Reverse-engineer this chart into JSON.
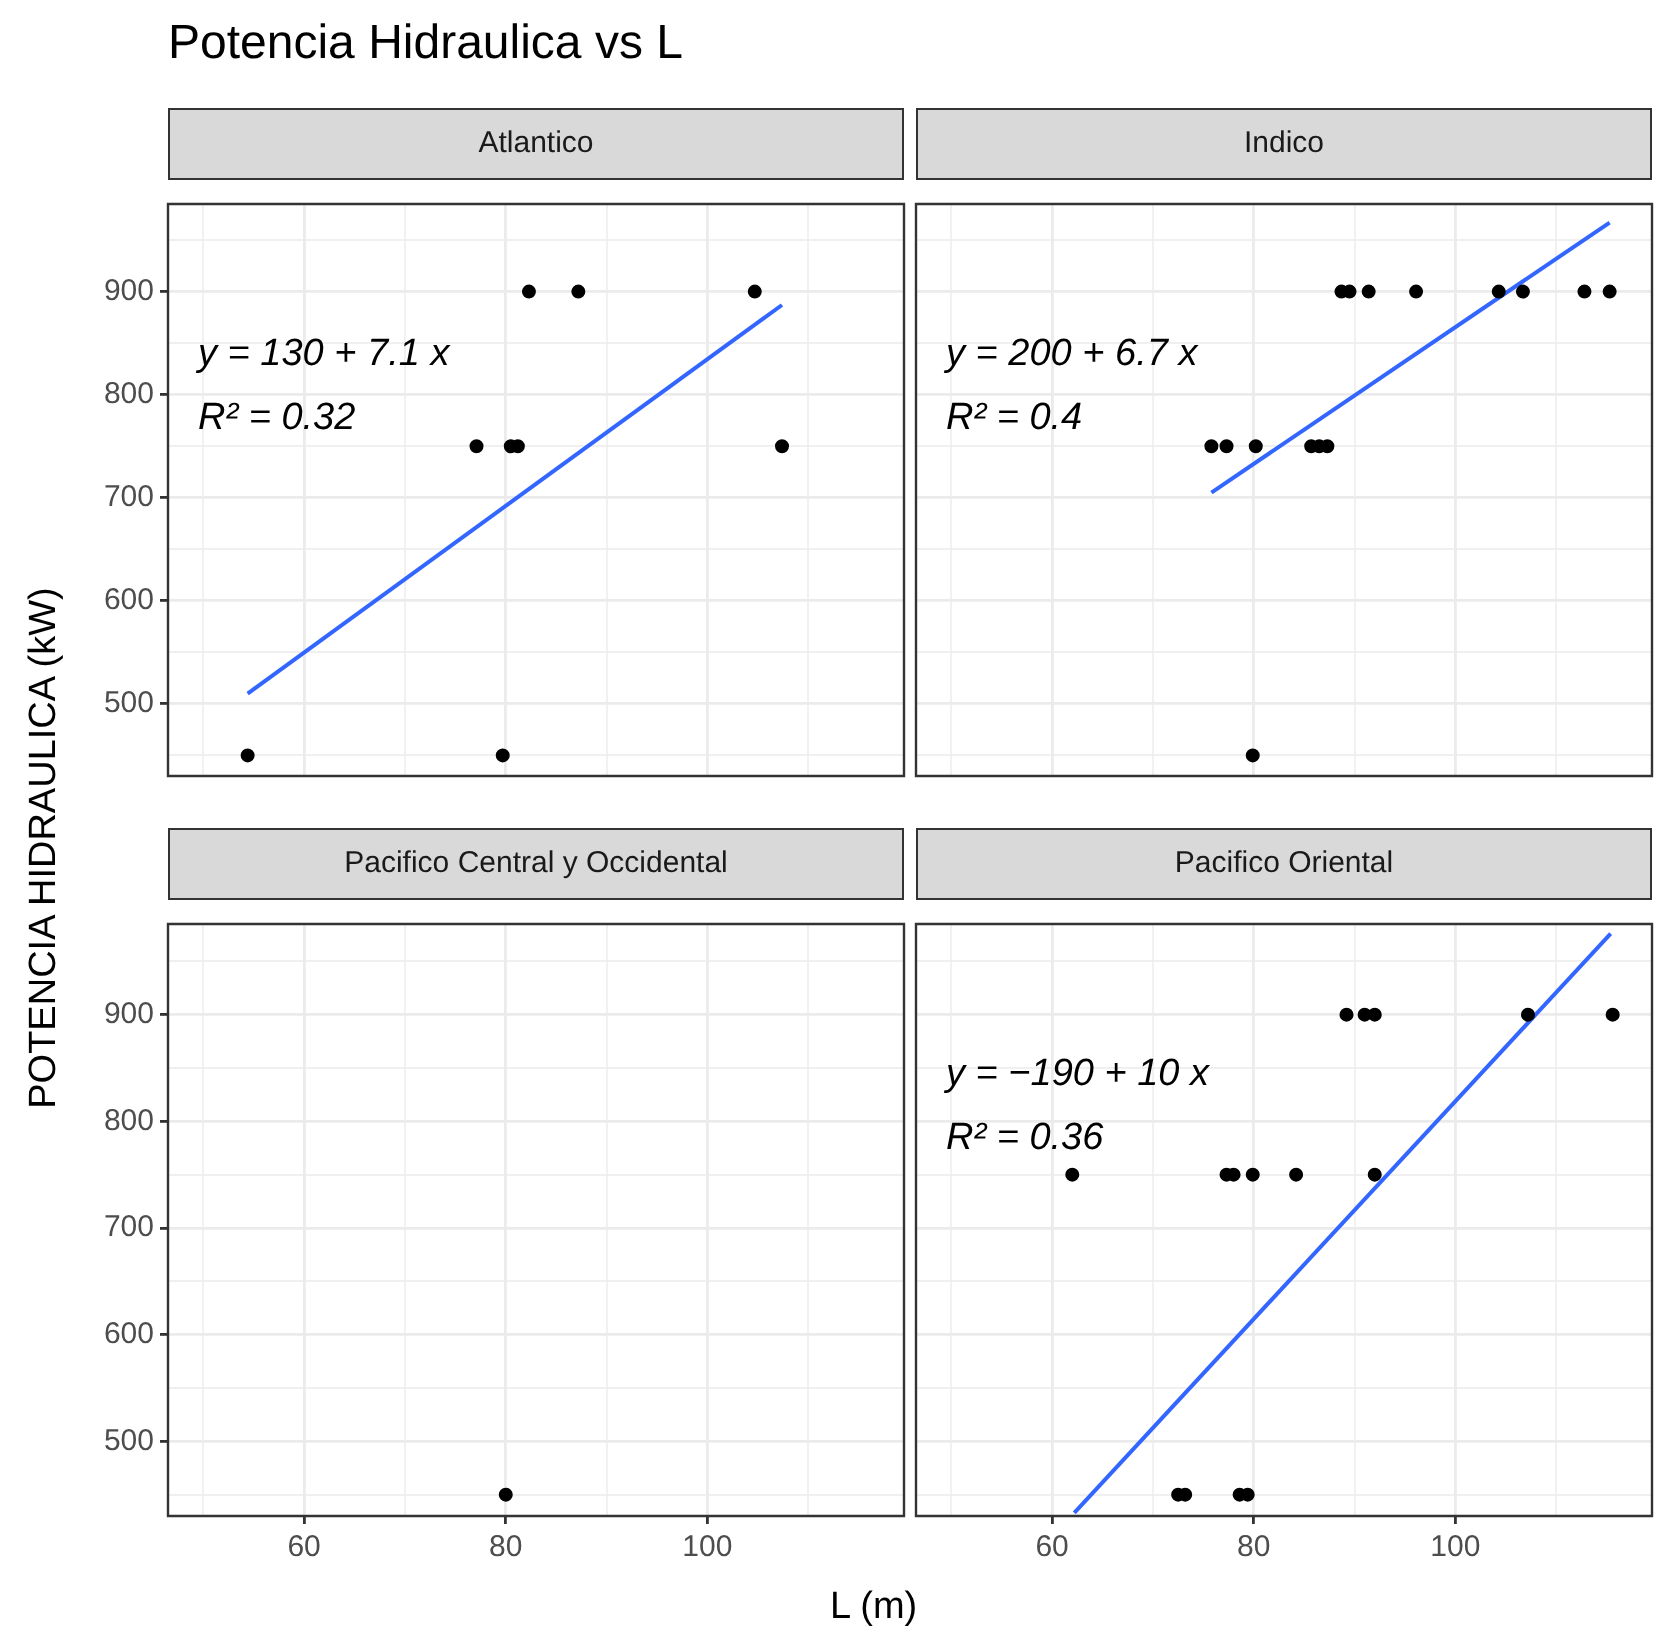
{
  "chart_data": [
    {
      "type": "scatter",
      "title": "Potencia Hidraulica vs L",
      "subtitle": "Atlantico",
      "ylabel": "POTENCIA HIDRAULICA (kW)",
      "xlim": [
        46.5,
        119.5
      ],
      "ylim": [
        430,
        985
      ],
      "xticks": [
        {
          "value": 50,
          "label": null
        },
        60,
        {
          "value": 70,
          "label": null
        },
        80,
        {
          "value": 90,
          "label": null
        },
        100,
        {
          "value": 110,
          "label": null
        }
      ],
      "yticks": [
        {
          "value": 450,
          "label": null
        },
        500,
        {
          "value": 550,
          "label": null
        },
        600,
        {
          "value": 650,
          "label": null
        },
        700,
        {
          "value": 750,
          "label": null
        },
        800,
        {
          "value": 850,
          "label": null
        },
        900,
        {
          "value": 950,
          "label": null
        }
      ],
      "grid": true,
      "tick_labels": "y",
      "annotations": [
        "y = 130 + 7.1 x",
        "R² = 0.32"
      ],
      "series": [
        {
          "marker": "circle",
          "color": "#000000",
          "x": [
            54.4,
            79.7,
            82.3,
            87.2,
            104.7,
            77.1,
            80.5,
            81.2,
            107.4
          ],
          "values": [
            450,
            450,
            900,
            900,
            900,
            750,
            750,
            750,
            750
          ]
        },
        {
          "type": "line",
          "marker": "none",
          "color": "#3366ff",
          "x": [
            54.4,
            107.4
          ],
          "values": [
            510,
            887
          ]
        }
      ]
    },
    {
      "type": "scatter",
      "subtitle": "Indico",
      "xlim": [
        46.5,
        119.5
      ],
      "ylim": [
        430,
        985
      ],
      "xticks": [
        {
          "value": 50,
          "label": null
        },
        60,
        {
          "value": 70,
          "label": null
        },
        80,
        {
          "value": 90,
          "label": null
        },
        100,
        {
          "value": 110,
          "label": null
        }
      ],
      "yticks": [
        {
          "value": 450,
          "label": null
        },
        500,
        {
          "value": 550,
          "label": null
        },
        600,
        {
          "value": 650,
          "label": null
        },
        700,
        {
          "value": 750,
          "label": null
        },
        800,
        {
          "value": 850,
          "label": null
        },
        900,
        {
          "value": 950,
          "label": null
        }
      ],
      "grid": true,
      "tick_labels": false,
      "annotations": [
        "y = 200 + 6.7 x",
        "R² = 0.4"
      ],
      "series": [
        {
          "marker": "circle",
          "color": "#000000",
          "x": [
            79.9,
            75.8,
            77.3,
            80.2,
            85.7,
            86.5,
            87.3,
            88.7,
            89.5,
            91.4,
            96.1,
            104.3,
            106.7,
            112.8,
            115.3
          ],
          "values": [
            450,
            750,
            750,
            750,
            750,
            750,
            750,
            900,
            900,
            900,
            900,
            900,
            900,
            900,
            900
          ]
        },
        {
          "type": "line",
          "marker": "none",
          "color": "#3366ff",
          "x": [
            75.8,
            115.3
          ],
          "values": [
            705,
            967
          ]
        }
      ]
    },
    {
      "type": "scatter",
      "subtitle": "Pacifico Central y Occidental",
      "xlabel": "L (m)",
      "xlim": [
        46.5,
        119.5
      ],
      "ylim": [
        430,
        985
      ],
      "xticks": [
        {
          "value": 50,
          "label": null
        },
        60,
        {
          "value": 70,
          "label": null
        },
        80,
        {
          "value": 90,
          "label": null
        },
        100,
        {
          "value": 110,
          "label": null
        }
      ],
      "yticks": [
        {
          "value": 450,
          "label": null
        },
        500,
        {
          "value": 550,
          "label": null
        },
        600,
        {
          "value": 650,
          "label": null
        },
        700,
        {
          "value": 750,
          "label": null
        },
        800,
        {
          "value": 850,
          "label": null
        },
        900,
        {
          "value": 950,
          "label": null
        }
      ],
      "grid": true,
      "series": [
        {
          "marker": "circle",
          "color": "#000000",
          "x": [
            80
          ],
          "values": [
            450
          ]
        }
      ]
    },
    {
      "type": "scatter",
      "subtitle": "Pacifico Oriental",
      "xlim": [
        46.5,
        119.5
      ],
      "ylim": [
        430,
        985
      ],
      "xticks": [
        {
          "value": 50,
          "label": null
        },
        60,
        {
          "value": 70,
          "label": null
        },
        80,
        {
          "value": 90,
          "label": null
        },
        100,
        {
          "value": 110,
          "label": null
        }
      ],
      "yticks": [
        {
          "value": 450,
          "label": null
        },
        500,
        {
          "value": 550,
          "label": null
        },
        600,
        {
          "value": 650,
          "label": null
        },
        700,
        {
          "value": 750,
          "label": null
        },
        800,
        {
          "value": 850,
          "label": null
        },
        900,
        {
          "value": 950,
          "label": null
        }
      ],
      "grid": true,
      "tick_labels": "x",
      "annotations": [
        "y = −190 + 10 x",
        "R² = 0.36"
      ],
      "series": [
        {
          "marker": "circle",
          "color": "#000000",
          "x": [
            62.0,
            77.3,
            78.0,
            79.9,
            84.2,
            92.0,
            89.2,
            91.0,
            92.0,
            107.2,
            115.6,
            72.5,
            73.2,
            78.6,
            79.4
          ],
          "values": [
            750,
            750,
            750,
            750,
            750,
            750,
            900,
            900,
            900,
            900,
            900,
            450,
            450,
            450,
            450
          ]
        },
        {
          "type": "line",
          "marker": "none",
          "color": "#3366ff",
          "x": [
            62.2,
            115.4
          ],
          "values": [
            433,
            976
          ]
        }
      ]
    }
  ]
}
